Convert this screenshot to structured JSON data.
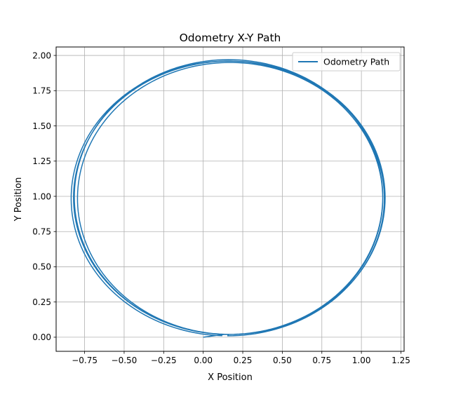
{
  "chart_data": {
    "type": "line",
    "title": "Odometry X-Y Path",
    "xlabel": "X Position",
    "ylabel": "Y Position",
    "xlim": [
      -0.93,
      1.27
    ],
    "ylim": [
      -0.1,
      2.06
    ],
    "xticks": [
      -0.75,
      -0.5,
      -0.25,
      0.0,
      0.25,
      0.5,
      0.75,
      1.0,
      1.25
    ],
    "xtick_labels": [
      "−0.75",
      "−0.50",
      "−0.25",
      "0.00",
      "0.25",
      "0.50",
      "0.75",
      "1.00",
      "1.25"
    ],
    "yticks": [
      0.0,
      0.25,
      0.5,
      0.75,
      1.0,
      1.25,
      1.5,
      1.75,
      2.0
    ],
    "ytick_labels": [
      "0.00",
      "0.25",
      "0.50",
      "0.75",
      "1.00",
      "1.25",
      "1.50",
      "1.75",
      "2.00"
    ],
    "grid": true,
    "legend_position": "top-right",
    "series": [
      {
        "name": "Odometry Path",
        "color": "#1f77b4",
        "loops": [
          {
            "cx": 0.17,
            "cy": 0.985,
            "rx": 0.965,
            "ry": 0.965,
            "start_angle_deg": -92
          },
          {
            "cx": 0.165,
            "cy": 0.99,
            "rx": 0.985,
            "ry": 0.97
          },
          {
            "cx": 0.16,
            "cy": 0.995,
            "rx": 0.975,
            "ry": 0.975
          },
          {
            "cx": 0.155,
            "cy": 0.985,
            "rx": 0.99,
            "ry": 0.975,
            "end_angle_deg": 268
          }
        ],
        "start_point": {
          "x": 0.0,
          "y": 0.0
        }
      }
    ]
  }
}
